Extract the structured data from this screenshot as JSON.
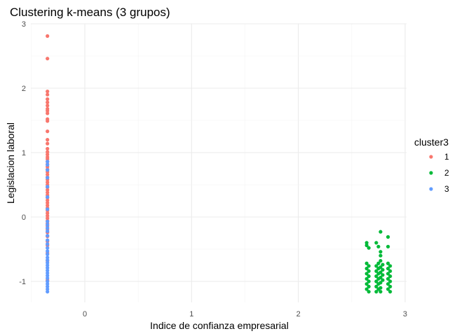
{
  "chart_data": {
    "type": "scatter",
    "title": "Clustering k-means (3 grupos)",
    "xlabel": "Indice de confianza empresarial",
    "ylabel": "Legislacion laboral",
    "xlim": [
      -0.5,
      3.0
    ],
    "ylim": [
      -1.3,
      3.0
    ],
    "xticks": [
      "0",
      "1",
      "2",
      "3"
    ],
    "yticks": [
      "-1",
      "0",
      "1",
      "2",
      "3"
    ],
    "grid": true,
    "legend": {
      "title": "cluster3",
      "position": "right"
    },
    "series": [
      {
        "name": "1",
        "color": "#F8766D",
        "points": [
          [
            -0.35,
            2.81
          ],
          [
            -0.35,
            2.46
          ],
          [
            -0.35,
            1.95
          ],
          [
            -0.35,
            1.9
          ],
          [
            -0.35,
            1.83
          ],
          [
            -0.35,
            1.78
          ],
          [
            -0.35,
            1.73
          ],
          [
            -0.35,
            1.68
          ],
          [
            -0.35,
            1.65
          ],
          [
            -0.35,
            1.61
          ],
          [
            -0.35,
            1.52
          ],
          [
            -0.35,
            1.49
          ],
          [
            -0.35,
            1.33
          ],
          [
            -0.35,
            1.2
          ],
          [
            -0.35,
            1.14
          ],
          [
            -0.35,
            1.06
          ],
          [
            -0.35,
            1.01
          ],
          [
            -0.35,
            0.97
          ],
          [
            -0.35,
            0.93
          ],
          [
            -0.35,
            0.9
          ],
          [
            -0.35,
            0.86
          ],
          [
            -0.35,
            0.82
          ],
          [
            -0.35,
            0.78
          ],
          [
            -0.35,
            0.74
          ],
          [
            -0.35,
            0.7
          ],
          [
            -0.35,
            0.66
          ],
          [
            -0.35,
            0.62
          ],
          [
            -0.35,
            0.58
          ],
          [
            -0.35,
            0.54
          ],
          [
            -0.35,
            0.5
          ],
          [
            -0.35,
            0.46
          ],
          [
            -0.35,
            0.42
          ],
          [
            -0.35,
            0.38
          ],
          [
            -0.35,
            0.34
          ],
          [
            -0.35,
            0.3
          ],
          [
            -0.35,
            0.26
          ],
          [
            -0.35,
            0.22
          ],
          [
            -0.35,
            0.18
          ],
          [
            -0.35,
            0.14
          ],
          [
            -0.35,
            0.1
          ],
          [
            -0.35,
            0.06
          ],
          [
            -0.35,
            0.02
          ],
          [
            -0.35,
            -0.02
          ],
          [
            -0.35,
            -0.06
          ],
          [
            -0.35,
            -0.1
          ],
          [
            -0.35,
            -0.14
          ],
          [
            -0.35,
            -0.19
          ],
          [
            -0.35,
            -0.24
          ],
          [
            -0.35,
            -0.3
          ],
          [
            -0.35,
            -0.38
          ],
          [
            -0.35,
            -0.44
          ],
          [
            -0.35,
            -0.56
          ],
          [
            -0.35,
            -0.68
          ],
          [
            -0.35,
            -0.98
          ]
        ]
      },
      {
        "name": "2",
        "color": "#00BA38",
        "points": [
          [
            2.64,
            -0.4
          ],
          [
            2.64,
            -0.44
          ],
          [
            2.64,
            -0.72
          ],
          [
            2.64,
            -0.8
          ],
          [
            2.64,
            -0.88
          ],
          [
            2.64,
            -0.96
          ],
          [
            2.64,
            -1.04
          ],
          [
            2.64,
            -1.12
          ],
          [
            2.66,
            -0.48
          ],
          [
            2.66,
            -0.76
          ],
          [
            2.66,
            -0.84
          ],
          [
            2.66,
            -0.92
          ],
          [
            2.66,
            -1.0
          ],
          [
            2.66,
            -1.08
          ],
          [
            2.66,
            -1.16
          ],
          [
            2.73,
            -0.4
          ],
          [
            2.73,
            -0.76
          ],
          [
            2.73,
            -0.84
          ],
          [
            2.73,
            -0.92
          ],
          [
            2.73,
            -1.0
          ],
          [
            2.73,
            -1.08
          ],
          [
            2.73,
            -1.16
          ],
          [
            2.75,
            -0.46
          ],
          [
            2.75,
            -0.72
          ],
          [
            2.75,
            -0.8
          ],
          [
            2.75,
            -0.88
          ],
          [
            2.75,
            -0.96
          ],
          [
            2.75,
            -1.04
          ],
          [
            2.75,
            -1.12
          ],
          [
            2.77,
            -0.23
          ],
          [
            2.77,
            -0.54
          ],
          [
            2.77,
            -0.6
          ],
          [
            2.77,
            -0.68
          ],
          [
            2.77,
            -0.78
          ],
          [
            2.77,
            -0.86
          ],
          [
            2.77,
            -0.94
          ],
          [
            2.77,
            -1.02
          ],
          [
            2.77,
            -1.1
          ],
          [
            2.77,
            -1.16
          ],
          [
            2.79,
            -0.74
          ],
          [
            2.79,
            -0.82
          ],
          [
            2.79,
            -0.9
          ],
          [
            2.79,
            -0.98
          ],
          [
            2.84,
            -0.31
          ],
          [
            2.84,
            -0.46
          ],
          [
            2.84,
            -0.72
          ],
          [
            2.84,
            -0.8
          ],
          [
            2.84,
            -0.88
          ],
          [
            2.84,
            -0.96
          ],
          [
            2.84,
            -1.04
          ],
          [
            2.84,
            -1.12
          ],
          [
            2.86,
            -0.76
          ],
          [
            2.86,
            -0.84
          ],
          [
            2.86,
            -0.92
          ],
          [
            2.86,
            -1.0
          ],
          [
            2.86,
            -1.08
          ],
          [
            2.86,
            -1.16
          ]
        ]
      },
      {
        "name": "3",
        "color": "#619CFF",
        "points": [
          [
            -0.35,
            0.86
          ],
          [
            -0.35,
            0.81
          ],
          [
            -0.35,
            0.73
          ],
          [
            -0.35,
            0.61
          ],
          [
            -0.35,
            0.47
          ],
          [
            -0.35,
            0.31
          ],
          [
            -0.35,
            0.12
          ],
          [
            -0.35,
            -0.07
          ],
          [
            -0.35,
            -0.12
          ],
          [
            -0.35,
            -0.17
          ],
          [
            -0.35,
            -0.22
          ],
          [
            -0.35,
            -0.29
          ],
          [
            -0.35,
            -0.36
          ],
          [
            -0.35,
            -0.42
          ],
          [
            -0.35,
            -0.48
          ],
          [
            -0.35,
            -0.53
          ],
          [
            -0.35,
            -0.58
          ],
          [
            -0.35,
            -0.63
          ],
          [
            -0.35,
            -0.67
          ],
          [
            -0.35,
            -0.71
          ],
          [
            -0.35,
            -0.75
          ],
          [
            -0.35,
            -0.79
          ],
          [
            -0.35,
            -0.83
          ],
          [
            -0.35,
            -0.87
          ],
          [
            -0.35,
            -0.91
          ],
          [
            -0.35,
            -0.95
          ],
          [
            -0.35,
            -1.0
          ],
          [
            -0.35,
            -1.04
          ],
          [
            -0.35,
            -1.08
          ],
          [
            -0.35,
            -1.12
          ],
          [
            -0.35,
            -1.16
          ]
        ]
      }
    ]
  }
}
